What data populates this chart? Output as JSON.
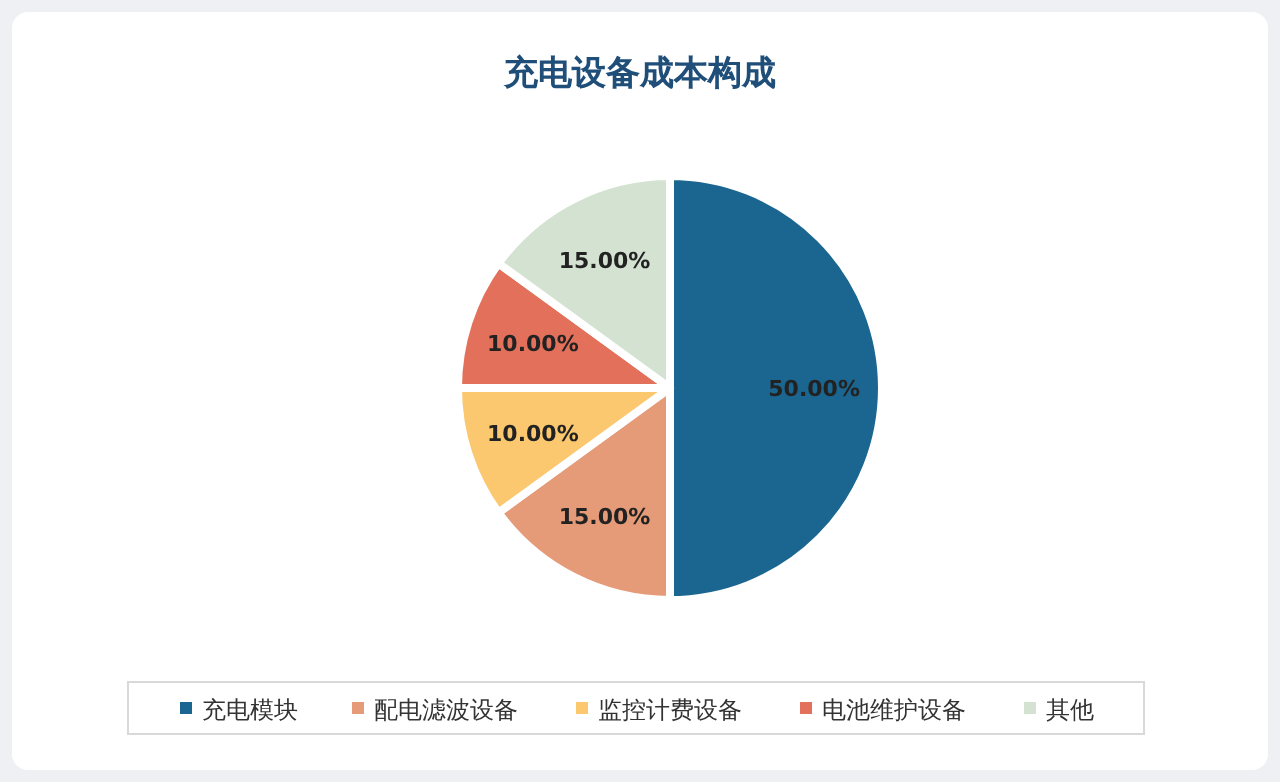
{
  "chart_data": {
    "type": "pie",
    "title": "充电设备成本构成",
    "categories": [
      "充电模块",
      "配电滤波设备",
      "监控计费设备",
      "电池维护设备",
      "其他"
    ],
    "values": [
      50,
      15,
      10,
      10,
      15
    ],
    "colors": [
      "#1b6690",
      "#e59a78",
      "#fbc76f",
      "#e2705a",
      "#d3e2d1"
    ],
    "value_labels": [
      "50.00%",
      "15.00%",
      "10.00%",
      "10.00%",
      "15.00%"
    ],
    "legend": "bottom"
  }
}
